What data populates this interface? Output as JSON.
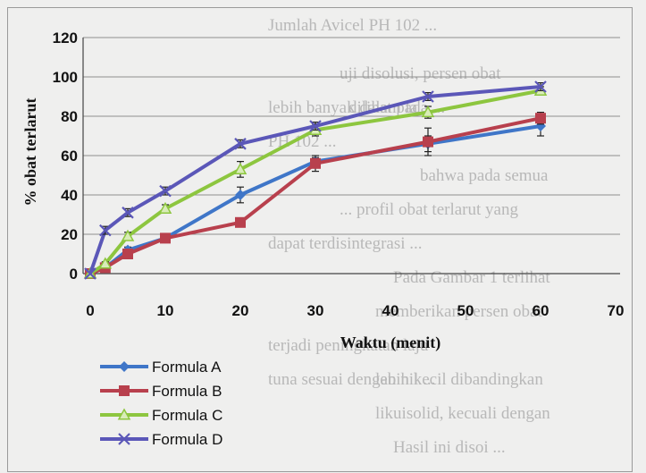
{
  "background_text": [
    "Jumlah Avicel PH 102 ...",
    "uji disolusi, persen obat",
    "lebih banyak dalam la ...",
    "dilihat pada ...",
    "PH 102 ...",
    "bahwa pada semua",
    "... profil obat terlarut yang",
    "Pada Gambar 1 terlihat",
    "dapat terdisintegrasi ...",
    "terjadi peningkatan laju",
    "tuna sesuai dengan nil ...",
    "memberikan persen obat",
    "lebih kecil dibandingkan",
    "likuisolid, kecuali dengan",
    "Hasil ini disoi ..."
  ],
  "chart_data": {
    "type": "line",
    "xlabel": "Waktu (menit)",
    "ylabel": "% obat terlarut",
    "xlim": [
      0,
      70
    ],
    "ylim": [
      0,
      120
    ],
    "xticks": [
      0,
      10,
      20,
      30,
      40,
      50,
      60,
      70
    ],
    "yticks": [
      0,
      20,
      40,
      60,
      80,
      100,
      120
    ],
    "grid": "horizontal",
    "legend_position": "bottom-left",
    "x": [
      0,
      2,
      5,
      10,
      20,
      30,
      45,
      60
    ],
    "series": [
      {
        "name": "Formula A",
        "color": "#3f76c8",
        "marker": "diamond",
        "values": [
          0,
          3,
          12,
          18,
          40,
          57,
          66,
          75
        ],
        "err": [
          0,
          1,
          1.5,
          1.5,
          4,
          2,
          4,
          5
        ]
      },
      {
        "name": "Formula B",
        "color": "#b8404d",
        "marker": "square",
        "values": [
          0,
          3,
          10,
          18,
          26,
          56,
          67,
          79
        ],
        "err": [
          0,
          1,
          1.5,
          1.5,
          2,
          4,
          7,
          3
        ]
      },
      {
        "name": "Formula C",
        "color": "#8dc63f",
        "marker": "triangle",
        "values": [
          0,
          5,
          19,
          33,
          53,
          73,
          82,
          93
        ],
        "err": [
          0,
          1,
          2,
          2,
          4,
          3,
          3,
          2
        ]
      },
      {
        "name": "Formula D",
        "color": "#5b57b8",
        "marker": "x",
        "values": [
          0,
          22,
          31,
          42,
          66,
          75,
          90,
          95
        ],
        "err": [
          0,
          2,
          2,
          2,
          2,
          2,
          2,
          2
        ]
      }
    ]
  }
}
